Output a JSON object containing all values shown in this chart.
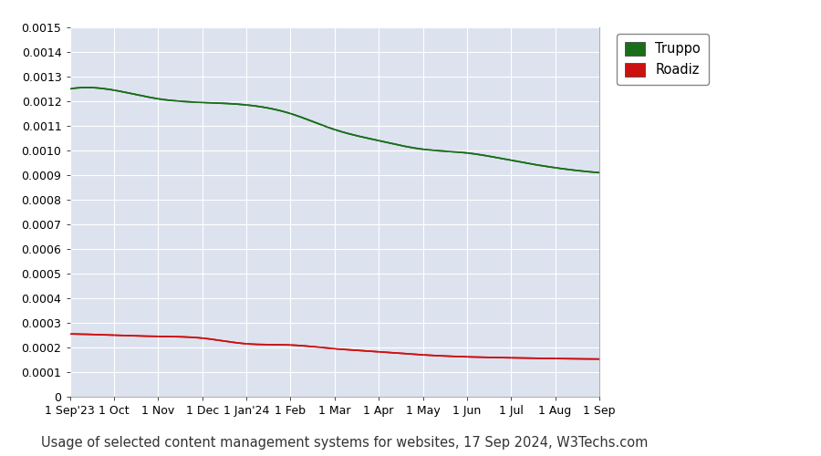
{
  "title": "Usage of selected content management systems for websites, 17 Sep 2024, W3Techs.com",
  "plot_bg_color": "#dde2ef",
  "outer_bg_color": "#ffffff",
  "x_labels": [
    "1 Sep'23",
    "1 Oct",
    "1 Nov",
    "1 Dec",
    "1 Jan'24",
    "1 Feb",
    "1 Mar",
    "1 Apr",
    "1 May",
    "1 Jun",
    "1 Jul",
    "1 Aug",
    "1 Sep"
  ],
  "x_positions": [
    0,
    1,
    2,
    3,
    4,
    5,
    6,
    7,
    8,
    9,
    10,
    11,
    12
  ],
  "truppo_values": [
    0.00125,
    0.001245,
    0.00121,
    0.001195,
    0.001185,
    0.00115,
    0.001085,
    0.00104,
    0.001005,
    0.00099,
    0.00096,
    0.00093,
    0.00091
  ],
  "roadiz_values": [
    0.000255,
    0.00025,
    0.000245,
    0.000238,
    0.000215,
    0.00021,
    0.000195,
    0.000183,
    0.00017,
    0.000162,
    0.000158,
    0.000155,
    0.000153
  ],
  "truppo_color": "#1a6e1a",
  "roadiz_color": "#cc1111",
  "ylim": [
    0,
    0.0015
  ],
  "yticks": [
    0,
    0.0001,
    0.0002,
    0.0003,
    0.0004,
    0.0005,
    0.0006,
    0.0007,
    0.0008,
    0.0009,
    0.001,
    0.0011,
    0.0012,
    0.0013,
    0.0014,
    0.0015
  ],
  "legend_truppo": "Truppo",
  "legend_roadiz": "Roadiz",
  "legend_truppo_color": "#1a6e1a",
  "legend_roadiz_color": "#cc1111",
  "grid_color": "#ffffff",
  "title_fontsize": 10.5,
  "axis_fontsize": 9,
  "legend_fontsize": 10.5
}
